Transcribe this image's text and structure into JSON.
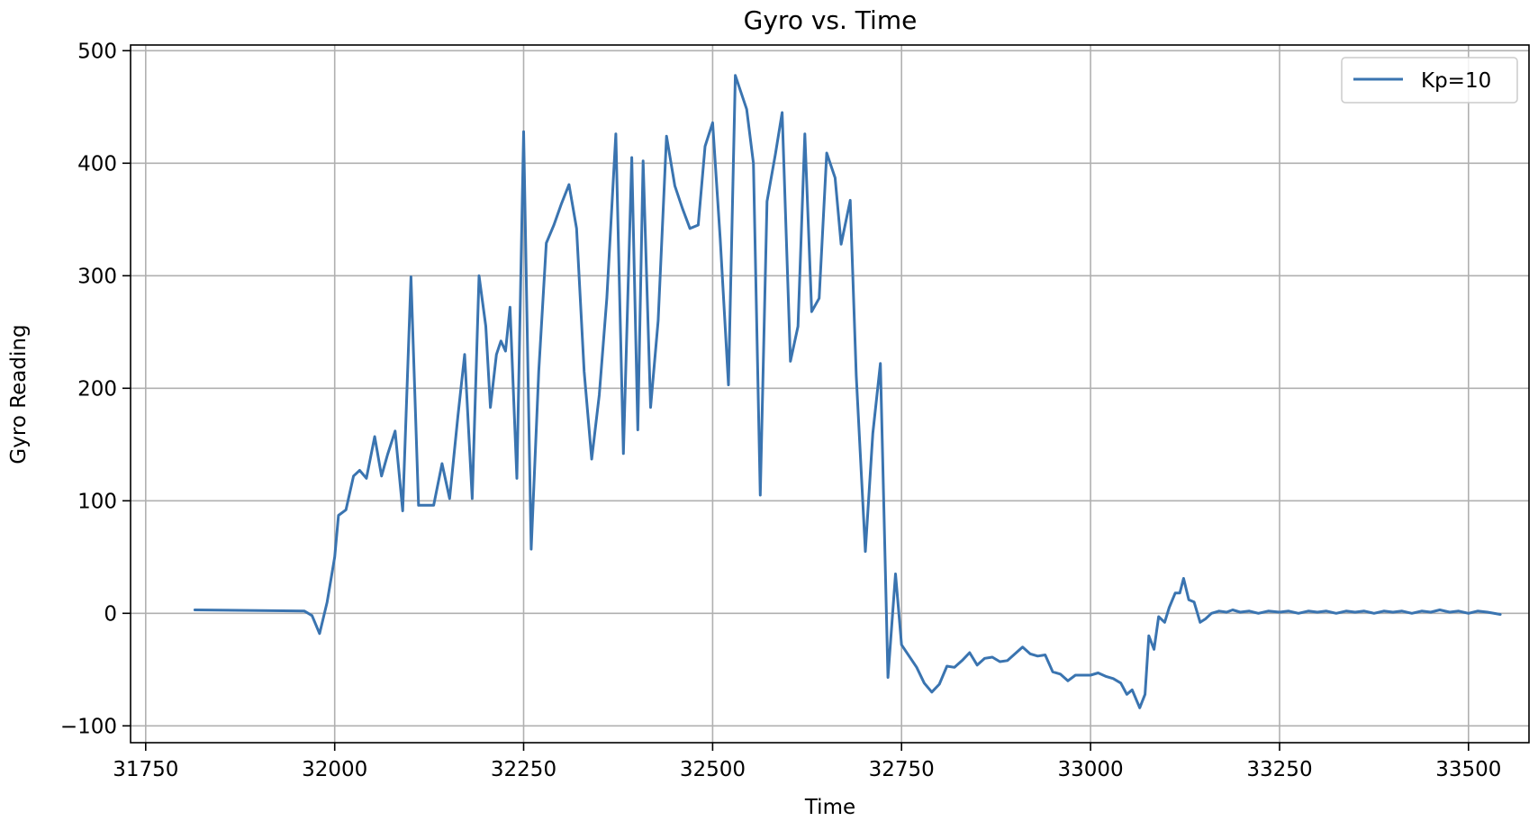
{
  "chart_data": {
    "type": "line",
    "title": "Gyro vs. Time",
    "xlabel": "Time",
    "ylabel": "Gyro Reading",
    "xlim": [
      31730,
      33580
    ],
    "ylim": [
      -115,
      505
    ],
    "xticks": [
      31750,
      32000,
      32250,
      32500,
      32750,
      33000,
      33250,
      33500
    ],
    "yticks": [
      -100,
      0,
      100,
      200,
      300,
      400,
      500
    ],
    "xtick_labels": [
      "31750",
      "32000",
      "32250",
      "32500",
      "32750",
      "33000",
      "33250",
      "33500"
    ],
    "ytick_labels": [
      "−100",
      "0",
      "100",
      "200",
      "300",
      "400",
      "500"
    ],
    "grid": true,
    "legend_position": "top-right",
    "series_color": "#3a74b0",
    "series": [
      {
        "name": "Kp=10",
        "points": [
          [
            31815,
            3
          ],
          [
            31960,
            2
          ],
          [
            31970,
            -2
          ],
          [
            31980,
            -18
          ],
          [
            31990,
            10
          ],
          [
            32000,
            50
          ],
          [
            32005,
            87
          ],
          [
            32015,
            92
          ],
          [
            32025,
            122
          ],
          [
            32033,
            127
          ],
          [
            32042,
            120
          ],
          [
            32053,
            157
          ],
          [
            32062,
            122
          ],
          [
            32070,
            141
          ],
          [
            32080,
            162
          ],
          [
            32090,
            91
          ],
          [
            32101,
            299
          ],
          [
            32111,
            96
          ],
          [
            32120,
            96
          ],
          [
            32131,
            96
          ],
          [
            32142,
            133
          ],
          [
            32152,
            102
          ],
          [
            32163,
            175
          ],
          [
            32172,
            230
          ],
          [
            32182,
            102
          ],
          [
            32191,
            300
          ],
          [
            32200,
            255
          ],
          [
            32206,
            183
          ],
          [
            32214,
            230
          ],
          [
            32220,
            242
          ],
          [
            32226,
            233
          ],
          [
            32232,
            272
          ],
          [
            32241,
            120
          ],
          [
            32250,
            428
          ],
          [
            32260,
            57
          ],
          [
            32270,
            215
          ],
          [
            32280,
            329
          ],
          [
            32290,
            345
          ],
          [
            32300,
            364
          ],
          [
            32310,
            381
          ],
          [
            32320,
            342
          ],
          [
            32330,
            215
          ],
          [
            32340,
            137
          ],
          [
            32350,
            194
          ],
          [
            32360,
            280
          ],
          [
            32372,
            426
          ],
          [
            32382,
            142
          ],
          [
            32393,
            405
          ],
          [
            32401,
            163
          ],
          [
            32408,
            402
          ],
          [
            32418,
            183
          ],
          [
            32428,
            260
          ],
          [
            32439,
            424
          ],
          [
            32450,
            380
          ],
          [
            32460,
            360
          ],
          [
            32470,
            342
          ],
          [
            32481,
            345
          ],
          [
            32490,
            415
          ],
          [
            32500,
            436
          ],
          [
            32510,
            333
          ],
          [
            32521,
            203
          ],
          [
            32530,
            478
          ],
          [
            32545,
            448
          ],
          [
            32554,
            400
          ],
          [
            32563,
            105
          ],
          [
            32572,
            366
          ],
          [
            32583,
            408
          ],
          [
            32592,
            445
          ],
          [
            32603,
            224
          ],
          [
            32613,
            255
          ],
          [
            32622,
            426
          ],
          [
            32631,
            268
          ],
          [
            32641,
            280
          ],
          [
            32651,
            409
          ],
          [
            32662,
            387
          ],
          [
            32670,
            328
          ],
          [
            32682,
            367
          ],
          [
            32690,
            211
          ],
          [
            32702,
            55
          ],
          [
            32712,
            160
          ],
          [
            32722,
            222
          ],
          [
            32732,
            -57
          ],
          [
            32742,
            35
          ],
          [
            32750,
            -28
          ],
          [
            32760,
            -38
          ],
          [
            32770,
            -48
          ],
          [
            32780,
            -62
          ],
          [
            32790,
            -70
          ],
          [
            32800,
            -63
          ],
          [
            32810,
            -47
          ],
          [
            32820,
            -48
          ],
          [
            32830,
            -42
          ],
          [
            32840,
            -35
          ],
          [
            32850,
            -46
          ],
          [
            32860,
            -40
          ],
          [
            32870,
            -39
          ],
          [
            32880,
            -43
          ],
          [
            32890,
            -42
          ],
          [
            32900,
            -36
          ],
          [
            32910,
            -30
          ],
          [
            32920,
            -36
          ],
          [
            32930,
            -38
          ],
          [
            32940,
            -37
          ],
          [
            32950,
            -52
          ],
          [
            32960,
            -54
          ],
          [
            32970,
            -60
          ],
          [
            32980,
            -55
          ],
          [
            32990,
            -55
          ],
          [
            33000,
            -55
          ],
          [
            33010,
            -53
          ],
          [
            33020,
            -56
          ],
          [
            33030,
            -58
          ],
          [
            33040,
            -62
          ],
          [
            33048,
            -72
          ],
          [
            33055,
            -68
          ],
          [
            33065,
            -84
          ],
          [
            33072,
            -72
          ],
          [
            33077,
            -20
          ],
          [
            33084,
            -32
          ],
          [
            33090,
            -3
          ],
          [
            33098,
            -8
          ],
          [
            33104,
            5
          ],
          [
            33112,
            18
          ],
          [
            33118,
            18
          ],
          [
            33123,
            31
          ],
          [
            33130,
            12
          ],
          [
            33137,
            10
          ],
          [
            33145,
            -8
          ],
          [
            33152,
            -5
          ],
          [
            33160,
            0
          ],
          [
            33170,
            2
          ],
          [
            33180,
            1
          ],
          [
            33188,
            3
          ],
          [
            33198,
            1
          ],
          [
            33210,
            2
          ],
          [
            33222,
            0
          ],
          [
            33235,
            2
          ],
          [
            33250,
            1
          ],
          [
            33262,
            2
          ],
          [
            33275,
            0
          ],
          [
            33288,
            2
          ],
          [
            33300,
            1
          ],
          [
            33312,
            2
          ],
          [
            33325,
            0
          ],
          [
            33338,
            2
          ],
          [
            33350,
            1
          ],
          [
            33362,
            2
          ],
          [
            33375,
            0
          ],
          [
            33388,
            2
          ],
          [
            33400,
            1
          ],
          [
            33412,
            2
          ],
          [
            33425,
            0
          ],
          [
            33438,
            2
          ],
          [
            33450,
            1
          ],
          [
            33462,
            3
          ],
          [
            33475,
            1
          ],
          [
            33487,
            2
          ],
          [
            33500,
            0
          ],
          [
            33512,
            2
          ],
          [
            33525,
            1
          ],
          [
            33542,
            -1
          ]
        ]
      }
    ]
  }
}
